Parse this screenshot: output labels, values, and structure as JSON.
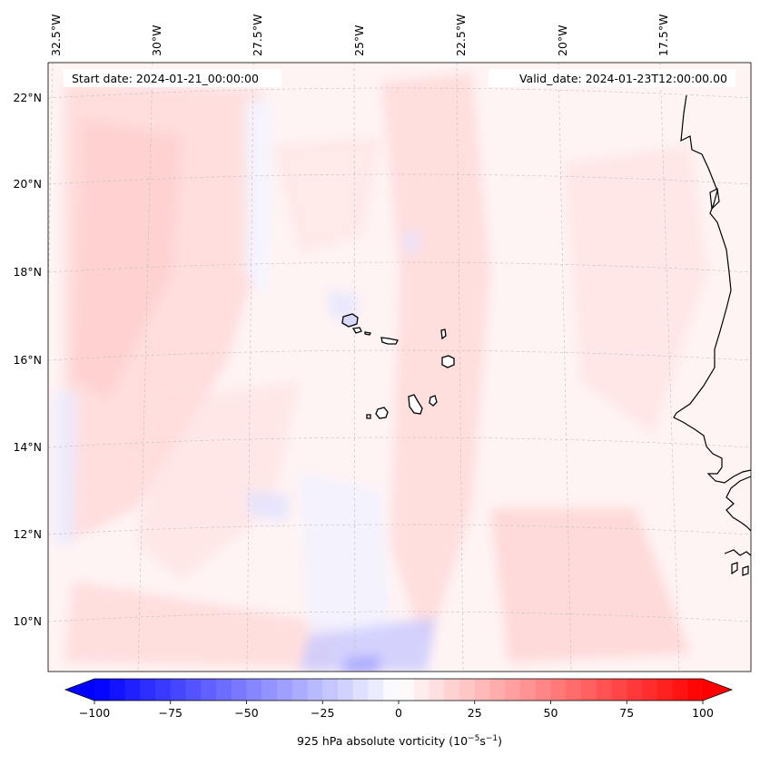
{
  "map": {
    "start_date_label": "Start date: 2024-01-21_00:00:00",
    "valid_date_label": "Valid_date: 2024-01-23T12:00:00.00",
    "lon_labels": [
      "32.5°W",
      "30°W",
      "27.5°W",
      "25°W",
      "22.5°W",
      "20°W",
      "17.5°W"
    ],
    "lat_labels": [
      "22°N",
      "20°N",
      "18°N",
      "16°N",
      "14°N",
      "12°N",
      "10°N"
    ],
    "field_name": "925 hPa absolute vorticity"
  },
  "colorbar": {
    "ticks": [
      "−100",
      "−75",
      "−50",
      "−25",
      "0",
      "25",
      "50",
      "75",
      "100"
    ],
    "tick_values": [
      -100,
      -75,
      -50,
      -25,
      0,
      25,
      50,
      75,
      100
    ],
    "min": -100,
    "max": 100,
    "step": 5,
    "label_prefix": "925 hPa absolute vorticity (10",
    "label_exp1": "−5",
    "label_mid": "s",
    "label_exp2": "−1",
    "label_suffix": ")"
  },
  "colors": {
    "negative_max": "#0000ff",
    "neutral": "#ffffff",
    "positive_max": "#ff0000",
    "coast": "#000000",
    "grid": "#b0b0b0"
  }
}
